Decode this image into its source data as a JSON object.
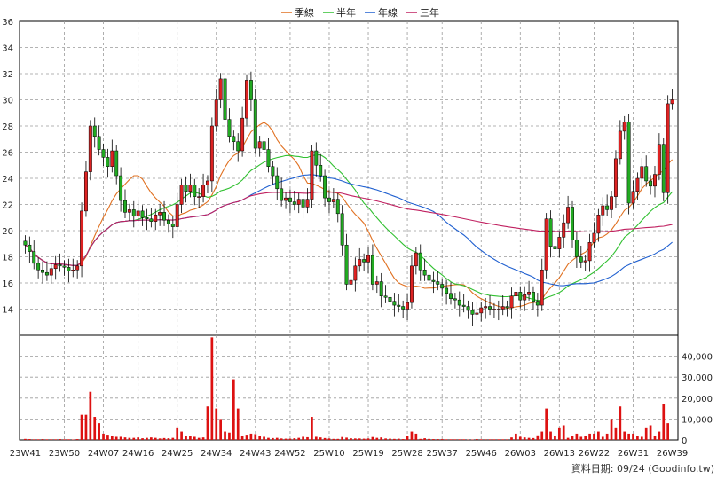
{
  "chart_data": {
    "type": "candlestick",
    "legend": [
      {
        "name": "季線",
        "color": "#e07020"
      },
      {
        "name": "半年",
        "color": "#30c030"
      },
      {
        "name": "年線",
        "color": "#2060d0"
      },
      {
        "name": "三年",
        "color": "#c02060"
      }
    ],
    "price_axis": {
      "min": 12,
      "max": 36,
      "ticks": [
        14,
        16,
        18,
        20,
        22,
        24,
        26,
        28,
        30,
        32,
        34,
        36
      ]
    },
    "volume_axis": {
      "min": 0,
      "max": 50000,
      "ticks": [
        0,
        10000,
        20000,
        30000,
        40000
      ],
      "tick_labels": [
        "0",
        "10,000",
        "20,000",
        "30,000",
        "40,000"
      ]
    },
    "x_labels": [
      "23W41",
      "23W50",
      "24W07",
      "24W16",
      "24W25",
      "24W34",
      "24W43",
      "24W52",
      "25W10",
      "25W19",
      "25W28",
      "25W37",
      "25W46",
      "26W03",
      "26W13",
      "26W22",
      "26W31",
      "26W39"
    ],
    "weekly_close": [
      18.9,
      18.4,
      17.5,
      17.0,
      16.8,
      16.6,
      17.1,
      17.4,
      17.3,
      17.2,
      16.9,
      17.0,
      17.3,
      21.5,
      24.5,
      28.0,
      27.2,
      26.2,
      25.6,
      24.9,
      26.1,
      24.2,
      22.3,
      21.4,
      21.6,
      21.1,
      21.5,
      21.0,
      20.9,
      20.7,
      21.2,
      21.4,
      20.8,
      20.5,
      20.3,
      22.0,
      23.5,
      23.0,
      23.5,
      22.6,
      22.6,
      23.5,
      23.8,
      28.0,
      30.0,
      31.6,
      28.5,
      27.2,
      26.8,
      26.1,
      28.6,
      31.5,
      30.0,
      26.3,
      26.8,
      26.2,
      24.9,
      24.2,
      23.2,
      22.3,
      22.5,
      22.2,
      22.0,
      22.4,
      21.8,
      22.4,
      26.1,
      25.0,
      24.2,
      22.5,
      22.2,
      22.4,
      21.3,
      18.9,
      15.9,
      16.2,
      17.3,
      17.8,
      17.6,
      18.1,
      15.9,
      16.1,
      15.0,
      14.9,
      14.6,
      14.3,
      14.2,
      14.0,
      14.5,
      17.3,
      18.3,
      17.0,
      16.6,
      16.2,
      16.1,
      15.9,
      15.6,
      15.2,
      14.8,
      14.7,
      14.3,
      14.2,
      13.9,
      13.6,
      13.7,
      14.1,
      14.2,
      14.0,
      14.0,
      14.0,
      14.2,
      14.1,
      15.0,
      15.3,
      14.7,
      15.1,
      15.3,
      14.6,
      14.3,
      17.0,
      20.9,
      18.8,
      18.6,
      19.5,
      20.6,
      21.8,
      19.3,
      18.0,
      17.6,
      17.7,
      19.1,
      19.8,
      21.2,
      21.9,
      21.6,
      22.6,
      25.5,
      27.6,
      28.3,
      22.1,
      23.0,
      24.0,
      24.9,
      23.8,
      23.4,
      24.3,
      26.6,
      22.9,
      29.7,
      30.0
    ],
    "weekly_volume": [
      500,
      400,
      300,
      300,
      400,
      300,
      300,
      300,
      400,
      300,
      300,
      200,
      400,
      12000,
      12000,
      23000,
      11000,
      8000,
      3000,
      2500,
      2000,
      1500,
      1500,
      1200,
      1000,
      1000,
      1200,
      800,
      1000,
      1200,
      1000,
      700,
      900,
      800,
      1000,
      6000,
      4000,
      2000,
      1800,
      1500,
      1000,
      1200,
      16000,
      49000,
      15000,
      10000,
      4000,
      3500,
      29000,
      15000,
      2000,
      2500,
      3000,
      2800,
      2000,
      1500,
      1000,
      900,
      1000,
      700,
      600,
      600,
      800,
      1000,
      1500,
      1300,
      11000,
      1500,
      1200,
      900,
      700,
      500,
      500,
      1400,
      1100,
      800,
      700,
      700,
      600,
      700,
      1400,
      1000,
      1200,
      700,
      600,
      500,
      600,
      400,
      2000,
      4000,
      3000,
      500,
      800,
      500,
      400,
      400,
      400,
      300,
      300,
      300,
      300,
      300,
      200,
      200,
      400,
      300,
      300,
      300,
      300,
      300,
      300,
      300,
      1200,
      3000,
      1500,
      1200,
      1000,
      900,
      2200,
      4000,
      15000,
      4000,
      2000,
      6000,
      7000,
      1000,
      2000,
      3000,
      1500,
      2000,
      3000,
      3000,
      4000,
      1500,
      3000,
      10000,
      6000,
      16000,
      4000,
      3000,
      3000,
      2000,
      1500,
      6000,
      7000,
      2000,
      4000,
      17000,
      8000
    ]
  },
  "footer": {
    "text": "資料日期: 09/24  (Goodinfo.tw)"
  }
}
